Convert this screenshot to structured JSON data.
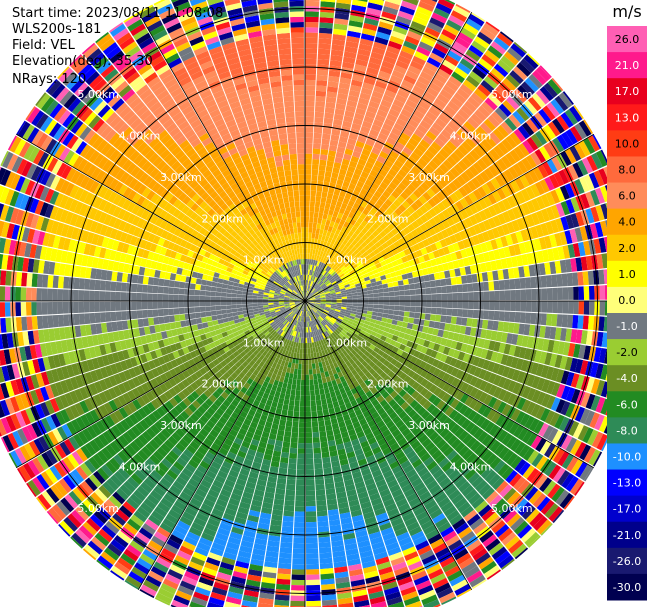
{
  "header": {
    "start_time": "Start time: 2023/08/11 11:08:08",
    "instrument": "WLS200s-181",
    "field": "Field: VEL",
    "elevation": "Elevation(deg): 35.30",
    "nrays": "NRays: 120"
  },
  "colorbar": {
    "unit": "m/s",
    "labels": [
      "26.0",
      "21.0",
      "17.0",
      "13.0",
      "10.0",
      "8.0",
      "6.0",
      "4.0",
      "2.0",
      "1.0",
      "0.0",
      "-1.0",
      "-2.0",
      "-4.0",
      "-6.0",
      "-8.0",
      "-10.0",
      "-13.0",
      "-17.0",
      "-21.0",
      "-26.0",
      "-30.0"
    ],
    "colors": [
      "#ff5fb4",
      "#ff1a8c",
      "#e8001e",
      "#ff1a1a",
      "#ff3c14",
      "#ff6a3c",
      "#ff8c5a",
      "#ffa500",
      "#ffc800",
      "#ffff00",
      "#ffff7a",
      "#707880",
      "#9acd32",
      "#6b8e23",
      "#228b22",
      "#2e8b57",
      "#1e90ff",
      "#0000ff",
      "#0000cd",
      "#00008b",
      "#191970",
      "#000050"
    ]
  },
  "range_labels": [
    "1.00km",
    "2.00km",
    "3.00km",
    "4.00km",
    "5.00km"
  ],
  "plot": {
    "type": "ppi",
    "nrays": 120,
    "range_rings_km": [
      1,
      2,
      3,
      4,
      5
    ],
    "max_range_km": 5.7,
    "spoke_angles_deg": [
      0,
      30,
      60,
      90,
      120,
      150,
      180,
      210,
      240,
      270,
      300,
      330
    ]
  }
}
